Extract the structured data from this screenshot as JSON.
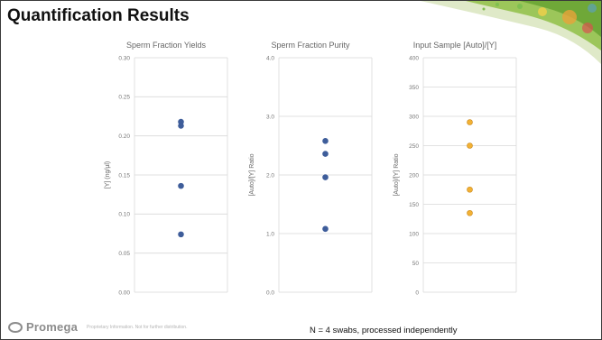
{
  "slide": {
    "title": "Quantification Results",
    "logo_text": "Promega",
    "footer_note": "Proprietary Information. Not for further distribution.",
    "footnote": "N = 4 swabs, processed independently"
  },
  "colors": {
    "blue_point": "#3e5d9a",
    "orange_point": "#f2b134",
    "orange_stroke": "#c9871a",
    "grid": "#d9d9d9",
    "deco_green": "#8cbf3f",
    "deco_orange": "#e8a33a"
  },
  "chart_data": [
    {
      "type": "scatter",
      "title": "Sperm Fraction Yields",
      "ylabel": "[Y] (ng/µl)",
      "ylim": [
        0,
        0.3
      ],
      "yticks": [
        "0.00",
        "0.05",
        "0.10",
        "0.15",
        "0.20",
        "0.25",
        "0.30"
      ],
      "grid": true,
      "series": [
        {
          "values": [
            0.218,
            0.213,
            0.136,
            0.074
          ]
        }
      ]
    },
    {
      "type": "scatter",
      "title": "Sperm Fraction Purity",
      "ylabel": "[Auto]/[Y] Ratio",
      "ylim": [
        0,
        4.0
      ],
      "yticks": [
        "0.0",
        "1.0",
        "2.0",
        "3.0",
        "4.0"
      ],
      "grid": true,
      "series": [
        {
          "values": [
            2.58,
            2.36,
            1.96,
            1.08
          ]
        }
      ]
    },
    {
      "type": "scatter",
      "title": "Input Sample [Auto]/[Y]",
      "ylabel": "[Auto]/[Y] Ratio",
      "ylim": [
        0,
        400
      ],
      "yticks": [
        "0",
        "50",
        "100",
        "150",
        "200",
        "250",
        "300",
        "350",
        "400"
      ],
      "grid": true,
      "series": [
        {
          "values": [
            290,
            250,
            175,
            135
          ]
        }
      ]
    }
  ]
}
